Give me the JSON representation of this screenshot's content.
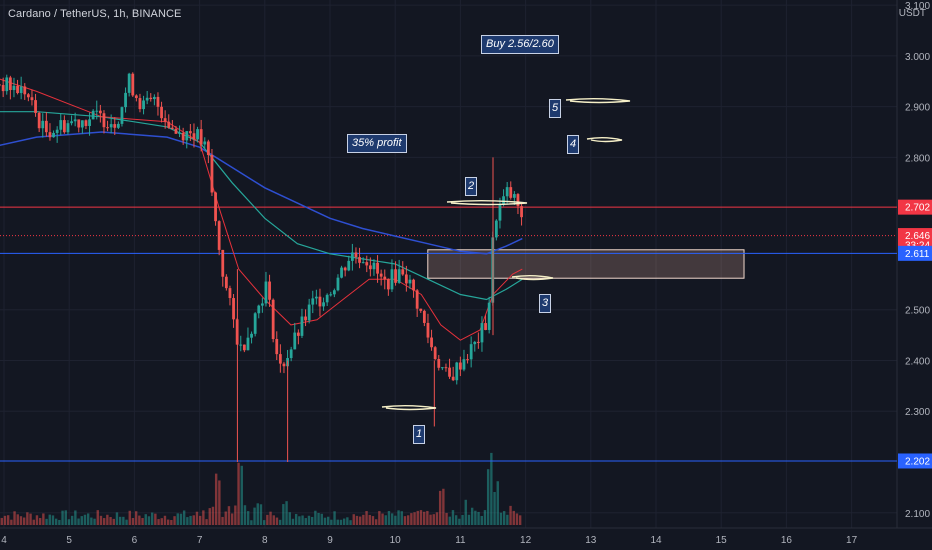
{
  "header": {
    "symbol": "Cardano / TetherUS, 1h, BINANCE",
    "currency": "USDT"
  },
  "annotations": {
    "buy": "Buy 2.56/2.60",
    "profit": "35% profit",
    "n1": "1",
    "n2": "2",
    "n3": "3",
    "n4": "4",
    "n5": "5"
  },
  "colors": {
    "background": "#131722",
    "up": "#26a69a",
    "down": "#ef5350",
    "resistance": "#f23645",
    "support": "#2962ff",
    "zone": "#f2b8a0",
    "ema_fast": "#e5313b",
    "ema_mid": "#26a69a",
    "ema_slow": "#2e4fd1"
  },
  "chart_data": {
    "type": "candlestick",
    "x_ticks": [
      "4",
      "5",
      "6",
      "7",
      "8",
      "9",
      "10",
      "11",
      "12",
      "13",
      "14",
      "15",
      "16",
      "17"
    ],
    "y_ticks": [
      "3.100",
      "3.000",
      "2.900",
      "2.800",
      "2.500",
      "2.400",
      "2.300",
      "2.100"
    ],
    "ylim": [
      2.07,
      3.11
    ],
    "price_labels": [
      {
        "text": "2.702",
        "value": 2.702,
        "color": "#f23645"
      },
      {
        "text": "2.646",
        "value": 2.646,
        "color": "#f23645"
      },
      {
        "text": "33:24",
        "value": 2.627,
        "color": "#f23645"
      },
      {
        "text": "2.611",
        "value": 2.611,
        "color": "#2962ff"
      },
      {
        "text": "2.202",
        "value": 2.202,
        "color": "#2962ff"
      }
    ],
    "levels": [
      {
        "name": "resistance",
        "value": 2.702
      },
      {
        "name": "current",
        "value": 2.646
      },
      {
        "name": "support-upper",
        "value": 2.611
      },
      {
        "name": "support-lower",
        "value": 2.202
      }
    ],
    "zone": {
      "x_start": 10.5,
      "x_end": 15.35,
      "y_low": 2.562,
      "y_high": 2.618
    },
    "price_path": [
      [
        3.8,
        2.95
      ],
      [
        4.3,
        2.93
      ],
      [
        4.6,
        2.85
      ],
      [
        5.0,
        2.87
      ],
      [
        5.4,
        2.88
      ],
      [
        5.7,
        2.87
      ],
      [
        5.9,
        2.95
      ],
      [
        6.1,
        2.9
      ],
      [
        6.3,
        2.91
      ],
      [
        6.6,
        2.85
      ],
      [
        6.9,
        2.85
      ],
      [
        7.1,
        2.81
      ],
      [
        7.2,
        2.69
      ],
      [
        7.35,
        2.56
      ],
      [
        7.6,
        2.42
      ],
      [
        7.75,
        2.46
      ],
      [
        8.0,
        2.55
      ],
      [
        8.2,
        2.38
      ],
      [
        8.4,
        2.43
      ],
      [
        8.7,
        2.51
      ],
      [
        9.0,
        2.54
      ],
      [
        9.3,
        2.61
      ],
      [
        9.55,
        2.6
      ],
      [
        9.8,
        2.55
      ],
      [
        10.1,
        2.58
      ],
      [
        10.3,
        2.52
      ],
      [
        10.55,
        2.42
      ],
      [
        10.8,
        2.36
      ],
      [
        11.0,
        2.4
      ],
      [
        11.2,
        2.43
      ],
      [
        11.4,
        2.48
      ],
      [
        11.5,
        2.68
      ],
      [
        11.7,
        2.73
      ],
      [
        11.85,
        2.71
      ],
      [
        11.95,
        2.646
      ]
    ],
    "ema_fast": [
      [
        3.8,
        2.96
      ],
      [
        4.5,
        2.93
      ],
      [
        5.5,
        2.88
      ],
      [
        6.5,
        2.87
      ],
      [
        7.0,
        2.83
      ],
      [
        7.3,
        2.7
      ],
      [
        7.6,
        2.58
      ],
      [
        8.0,
        2.52
      ],
      [
        8.4,
        2.47
      ],
      [
        8.8,
        2.48
      ],
      [
        9.2,
        2.52
      ],
      [
        9.6,
        2.56
      ],
      [
        10.0,
        2.56
      ],
      [
        10.4,
        2.53
      ],
      [
        10.7,
        2.47
      ],
      [
        11.0,
        2.44
      ],
      [
        11.3,
        2.46
      ],
      [
        11.5,
        2.53
      ],
      [
        11.8,
        2.57
      ],
      [
        11.95,
        2.58
      ]
    ],
    "ema_mid": [
      [
        3.8,
        2.89
      ],
      [
        4.5,
        2.89
      ],
      [
        5.5,
        2.88
      ],
      [
        6.5,
        2.86
      ],
      [
        7.0,
        2.83
      ],
      [
        7.5,
        2.75
      ],
      [
        8.0,
        2.68
      ],
      [
        8.5,
        2.63
      ],
      [
        9.0,
        2.61
      ],
      [
        9.5,
        2.6
      ],
      [
        10.0,
        2.59
      ],
      [
        10.5,
        2.56
      ],
      [
        11.0,
        2.53
      ],
      [
        11.4,
        2.52
      ],
      [
        11.7,
        2.54
      ],
      [
        11.95,
        2.56
      ]
    ],
    "ema_slow": [
      [
        3.8,
        2.82
      ],
      [
        4.5,
        2.84
      ],
      [
        5.5,
        2.85
      ],
      [
        6.5,
        2.84
      ],
      [
        7.0,
        2.82
      ],
      [
        7.5,
        2.78
      ],
      [
        8.0,
        2.74
      ],
      [
        8.5,
        2.71
      ],
      [
        9.0,
        2.68
      ],
      [
        9.5,
        2.66
      ],
      [
        10.0,
        2.645
      ],
      [
        10.5,
        2.63
      ],
      [
        11.0,
        2.615
      ],
      [
        11.4,
        2.61
      ],
      [
        11.7,
        2.625
      ],
      [
        11.95,
        2.64
      ]
    ],
    "volume_spikes": [
      {
        "x": 7.6,
        "v": 0.95
      },
      {
        "x": 7.25,
        "v": 0.75
      },
      {
        "x": 11.45,
        "v": 1.0
      },
      {
        "x": 11.55,
        "v": 0.6
      },
      {
        "x": 10.7,
        "v": 0.55
      },
      {
        "x": 8.3,
        "v": 0.35
      }
    ]
  }
}
